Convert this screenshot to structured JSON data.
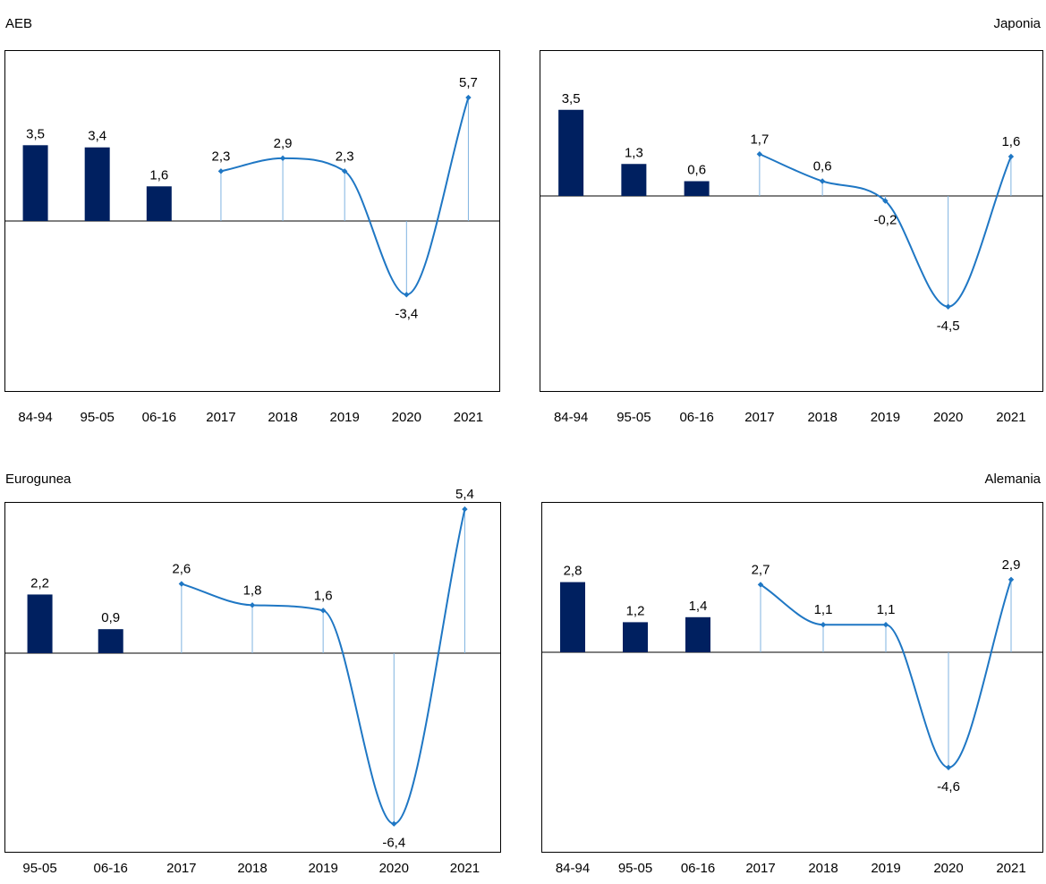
{
  "chart_data": [
    {
      "type": "bar",
      "title": "AEB",
      "categories": [
        "84-94",
        "95-05",
        "06-16",
        "2017",
        "2018",
        "2019",
        "2020",
        "2021"
      ],
      "bars": {
        "categories": [
          "84-94",
          "95-05",
          "06-16"
        ],
        "values": [
          3.5,
          3.4,
          1.6
        ],
        "labels": [
          "3,5",
          "3,4",
          "1,6"
        ]
      },
      "line": {
        "categories": [
          "2017",
          "2018",
          "2019",
          "2020",
          "2021"
        ],
        "values": [
          2.3,
          2.9,
          2.3,
          -3.4,
          5.7
        ],
        "labels": [
          "2,3",
          "2,9",
          "2,3",
          "-3,4",
          "5,7"
        ]
      },
      "ylim": [
        -8,
        8
      ],
      "colors": {
        "bar": "#002060",
        "line": "#1f77c4"
      }
    },
    {
      "type": "bar",
      "title": "Japonia",
      "categories": [
        "84-94",
        "95-05",
        "06-16",
        "2017",
        "2018",
        "2019",
        "2020",
        "2021"
      ],
      "bars": {
        "categories": [
          "84-94",
          "95-05",
          "06-16"
        ],
        "values": [
          3.5,
          1.3,
          0.6
        ],
        "labels": [
          "3,5",
          "1,3",
          "0,6"
        ]
      },
      "line": {
        "categories": [
          "2017",
          "2018",
          "2019",
          "2020",
          "2021"
        ],
        "values": [
          1.7,
          0.6,
          -0.2,
          -4.5,
          1.6
        ],
        "labels": [
          "1,7",
          "0,6",
          "-0,2",
          "-4,5",
          "1,6"
        ]
      },
      "ylim": [
        -8,
        6
      ],
      "colors": {
        "bar": "#002060",
        "line": "#1f77c4"
      }
    },
    {
      "type": "bar",
      "title": "Eurogunea",
      "categories": [
        "95-05",
        "06-16",
        "2017",
        "2018",
        "2019",
        "2020",
        "2021"
      ],
      "bars": {
        "categories": [
          "95-05",
          "06-16"
        ],
        "values": [
          2.2,
          0.9
        ],
        "labels": [
          "2,2",
          "0,9"
        ]
      },
      "line": {
        "categories": [
          "2017",
          "2018",
          "2019",
          "2020",
          "2021"
        ],
        "values": [
          2.6,
          1.8,
          1.6,
          -6.4,
          5.4
        ],
        "labels": [
          "2,6",
          "1,8",
          "1,6",
          "-6,4",
          "5,4"
        ]
      },
      "ylim": [
        -8,
        6
      ],
      "colors": {
        "bar": "#002060",
        "line": "#1f77c4"
      }
    },
    {
      "type": "bar",
      "title": "Alemania",
      "categories": [
        "84-94",
        "95-05",
        "06-16",
        "2017",
        "2018",
        "2019",
        "2020",
        "2021"
      ],
      "bars": {
        "categories": [
          "84-94",
          "95-05",
          "06-16"
        ],
        "values": [
          2.8,
          1.2,
          1.4
        ],
        "labels": [
          "2,8",
          "1,2",
          "1,4"
        ]
      },
      "line": {
        "categories": [
          "2017",
          "2018",
          "2019",
          "2020",
          "2021"
        ],
        "values": [
          2.7,
          1.1,
          1.1,
          -4.6,
          2.9
        ],
        "labels": [
          "2,7",
          "1,1",
          "1,1",
          "-4,6",
          "2,9"
        ]
      },
      "ylim": [
        -8,
        6
      ],
      "colors": {
        "bar": "#002060",
        "line": "#1f77c4"
      }
    }
  ]
}
